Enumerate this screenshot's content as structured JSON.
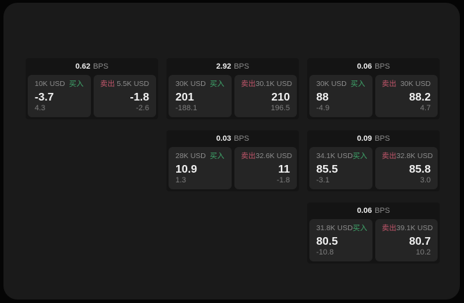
{
  "colors": {
    "outer_bg": "#050505",
    "screen_bg": "#1a1a1a",
    "card_bg": "#141414",
    "panel_bg": "#252525",
    "text_primary": "#f0f0f0",
    "text_muted": "#8c8c8c",
    "text_sub": "#7e7e7e",
    "buy_green": "#3fa66b",
    "sell_red": "#c2566b"
  },
  "labels": {
    "bps_unit": "BPS",
    "buy": "买入",
    "sell": "卖出"
  },
  "cards": [
    {
      "col": 1,
      "row": 1,
      "bps": "0.62",
      "buy": {
        "notional": "10K USD",
        "value": "-3.7",
        "sub": "4.3"
      },
      "sell": {
        "notional": "5.5K USD",
        "value": "-1.8",
        "sub": "-2.6"
      }
    },
    {
      "col": 2,
      "row": 1,
      "bps": "2.92",
      "buy": {
        "notional": "30K USD",
        "value": "201",
        "sub": "-188.1"
      },
      "sell": {
        "notional": "30.1K USD",
        "value": "210",
        "sub": "196.5"
      }
    },
    {
      "col": 3,
      "row": 1,
      "bps": "0.06",
      "buy": {
        "notional": "30K USD",
        "value": "88",
        "sub": "-4.9"
      },
      "sell": {
        "notional": "30K USD",
        "value": "88.2",
        "sub": "4.7"
      }
    },
    {
      "col": 2,
      "row": 2,
      "bps": "0.03",
      "buy": {
        "notional": "28K USD",
        "value": "10.9",
        "sub": "1.3"
      },
      "sell": {
        "notional": "32.6K USD",
        "value": "11",
        "sub": "-1.8"
      }
    },
    {
      "col": 3,
      "row": 2,
      "bps": "0.09",
      "buy": {
        "notional": "34.1K USD",
        "value": "85.5",
        "sub": "-3.1"
      },
      "sell": {
        "notional": "32.8K USD",
        "value": "85.8",
        "sub": "3.0"
      }
    },
    {
      "col": 3,
      "row": 3,
      "bps": "0.06",
      "buy": {
        "notional": "31.8K USD",
        "value": "80.5",
        "sub": "-10.8"
      },
      "sell": {
        "notional": "39.1K USD",
        "value": "80.7",
        "sub": "10.2"
      }
    }
  ]
}
